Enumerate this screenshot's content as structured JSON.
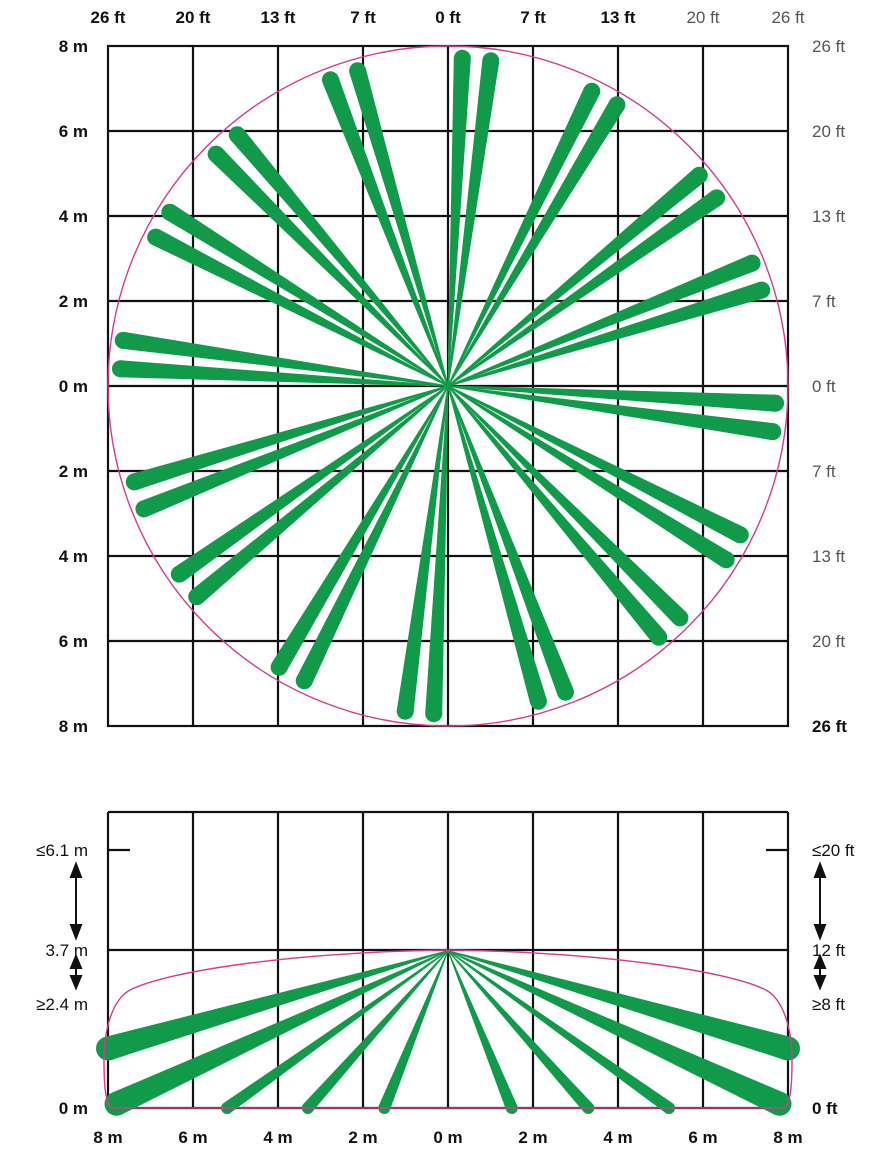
{
  "top_view": {
    "top_axis_labels": [
      "26 ft",
      "20 ft",
      "13 ft",
      "7 ft",
      "0 ft",
      "7 ft",
      "13 ft",
      "20 ft",
      "26 ft"
    ],
    "left_axis_labels": [
      "8 m",
      "6 m",
      "4 m",
      "2 m",
      "0 m",
      "2 m",
      "4 m",
      "6 m",
      "8 m"
    ],
    "right_axis_labels": [
      "26 ft",
      "20 ft",
      "13 ft",
      "7 ft",
      "0 ft",
      "7 ft",
      "13 ft",
      "20 ft",
      "26 ft"
    ],
    "coverage_radius_m": 8,
    "beam_angles_deg": [
      2.5,
      7.5,
      26,
      31,
      50,
      55,
      68,
      73,
      93,
      98,
      117,
      122,
      135,
      140,
      159,
      164,
      182.5,
      187.5,
      206,
      211,
      230,
      235,
      248,
      253,
      273,
      278,
      297,
      302,
      315,
      320,
      339,
      344
    ],
    "beam_color": "#119a4a",
    "boundary_color": "#d33c8f"
  },
  "side_view": {
    "left_height_labels": [
      "≤6.1 m",
      "3.7 m",
      "≥2.4 m",
      "0 m"
    ],
    "right_height_labels": [
      "≤20 ft",
      "12 ft",
      "≥8 ft",
      "0 ft"
    ],
    "bottom_axis_labels": [
      "8 m",
      "6 m",
      "4 m",
      "2 m",
      "0 m",
      "2 m",
      "4 m",
      "6 m",
      "8 m"
    ],
    "mount_height_m": 3.7,
    "beam_targets": [
      {
        "x_m": -8,
        "y_m": 1.4
      },
      {
        "x_m": -7.8,
        "y_m": 0.1
      },
      {
        "x_m": -5.2,
        "y_m": 0
      },
      {
        "x_m": -3.3,
        "y_m": 0
      },
      {
        "x_m": -1.5,
        "y_m": 0
      },
      {
        "x_m": 1.5,
        "y_m": 0
      },
      {
        "x_m": 3.3,
        "y_m": 0
      },
      {
        "x_m": 5.2,
        "y_m": 0
      },
      {
        "x_m": 7.8,
        "y_m": 0.1
      },
      {
        "x_m": 8,
        "y_m": 1.4
      }
    ]
  }
}
